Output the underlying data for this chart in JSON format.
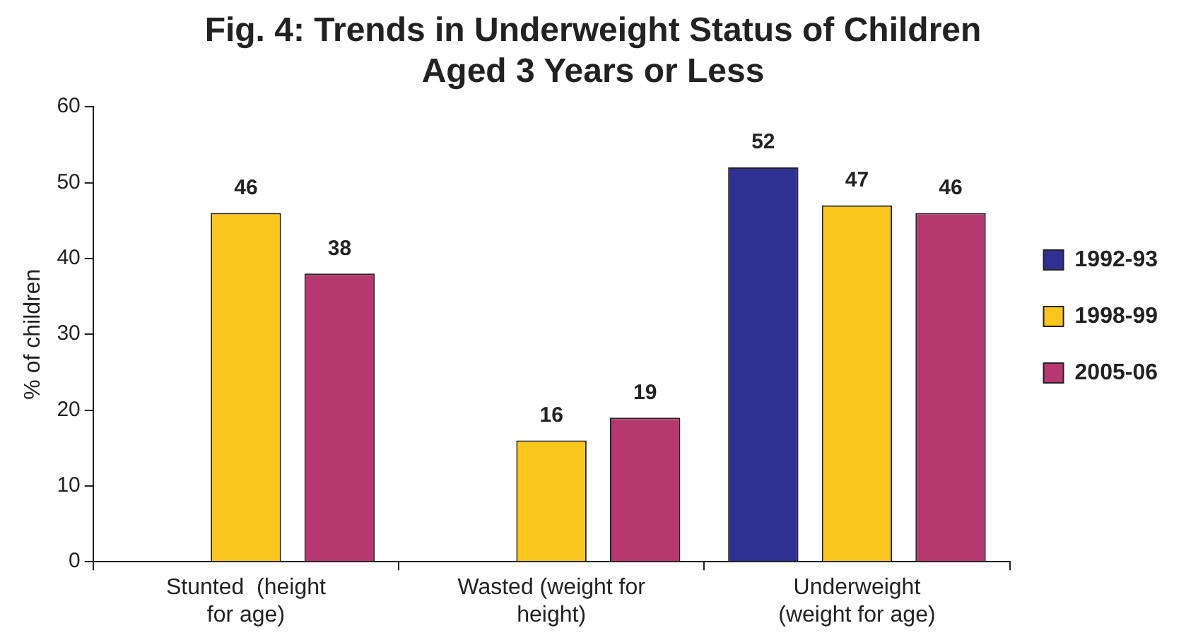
{
  "chart_data": {
    "type": "bar",
    "title": "Fig. 4: Trends in Underweight Status of Children Aged 3 Years or Less",
    "ylabel": "% of children",
    "categories": [
      "Stunted  (height for age)",
      "Wasted (weight for height)",
      "Underweight (weight for age)"
    ],
    "series": [
      {
        "name": "1992-93",
        "color": "#2e3192",
        "values": [
          null,
          null,
          52
        ]
      },
      {
        "name": "1998-99",
        "color": "#f9c51f",
        "values": [
          46,
          16,
          47
        ]
      },
      {
        "name": "2005-06",
        "color": "#b5396f",
        "values": [
          38,
          19,
          46
        ]
      }
    ],
    "ylim": [
      0,
      60
    ],
    "yticks": [
      0,
      10,
      20,
      30,
      40,
      50,
      60
    ],
    "grid": false,
    "legend": "right",
    "data_labels": true
  }
}
